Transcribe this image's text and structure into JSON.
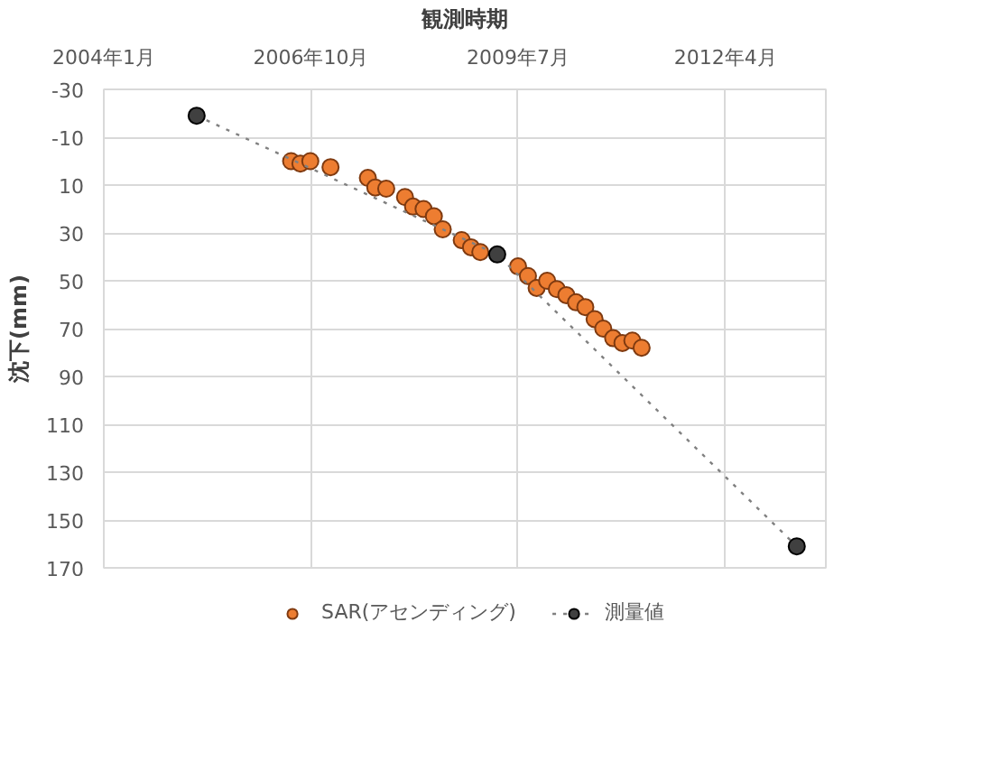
{
  "chart_data": {
    "type": "scatter",
    "xlabel": "観測時期",
    "ylabel": "沈下(mm)",
    "xlim": [
      "2004-01",
      "2013-08"
    ],
    "xticks": [
      {
        "value": "2004-01-01",
        "label": "2004年1月"
      },
      {
        "value": "2006-10-01",
        "label": "2006年10月"
      },
      {
        "value": "2009-07-01",
        "label": "2009年7月"
      },
      {
        "value": "2012-04-01",
        "label": "2012年4月"
      }
    ],
    "ylim": [
      170,
      -30
    ],
    "yticks": [
      -30,
      -10,
      10,
      30,
      50,
      70,
      90,
      110,
      130,
      150,
      170
    ],
    "grid": true,
    "legend": "bottom",
    "series": [
      {
        "name": "SAR(アセンディング)",
        "marker": "circle",
        "color": "#ed7d31",
        "x": [
          "2006-06-27",
          "2006-08-11",
          "2006-09-28",
          "2007-01-04",
          "2007-07-04",
          "2007-08-09",
          "2007-10-01",
          "2007-12-31",
          "2008-02-08",
          "2008-03-30",
          "2008-05-19",
          "2008-07-01",
          "2008-10-01",
          "2008-11-15",
          "2008-12-30",
          "2009-07-01",
          "2009-08-18",
          "2009-09-29",
          "2009-11-19",
          "2010-01-05",
          "2010-02-20",
          "2010-04-08",
          "2010-05-23",
          "2010-07-07",
          "2010-08-18",
          "2010-10-05",
          "2010-11-19",
          "2011-01-06",
          "2011-02-20"
        ],
        "values": [
          0,
          1,
          0,
          2.5,
          7,
          11,
          11.5,
          15,
          19,
          20,
          23,
          28.5,
          33,
          36,
          38,
          44,
          48,
          53,
          50,
          53.5,
          56,
          59,
          61,
          66,
          70,
          74,
          76,
          75,
          78
        ]
      },
      {
        "name": "測量値",
        "type": "line",
        "marker": "circle",
        "line_style": "dotted",
        "color": "#404040",
        "x": [
          "2005-03-26",
          "2009-03-22",
          "2013-03-13"
        ],
        "values": [
          -19,
          39,
          161
        ]
      }
    ]
  }
}
